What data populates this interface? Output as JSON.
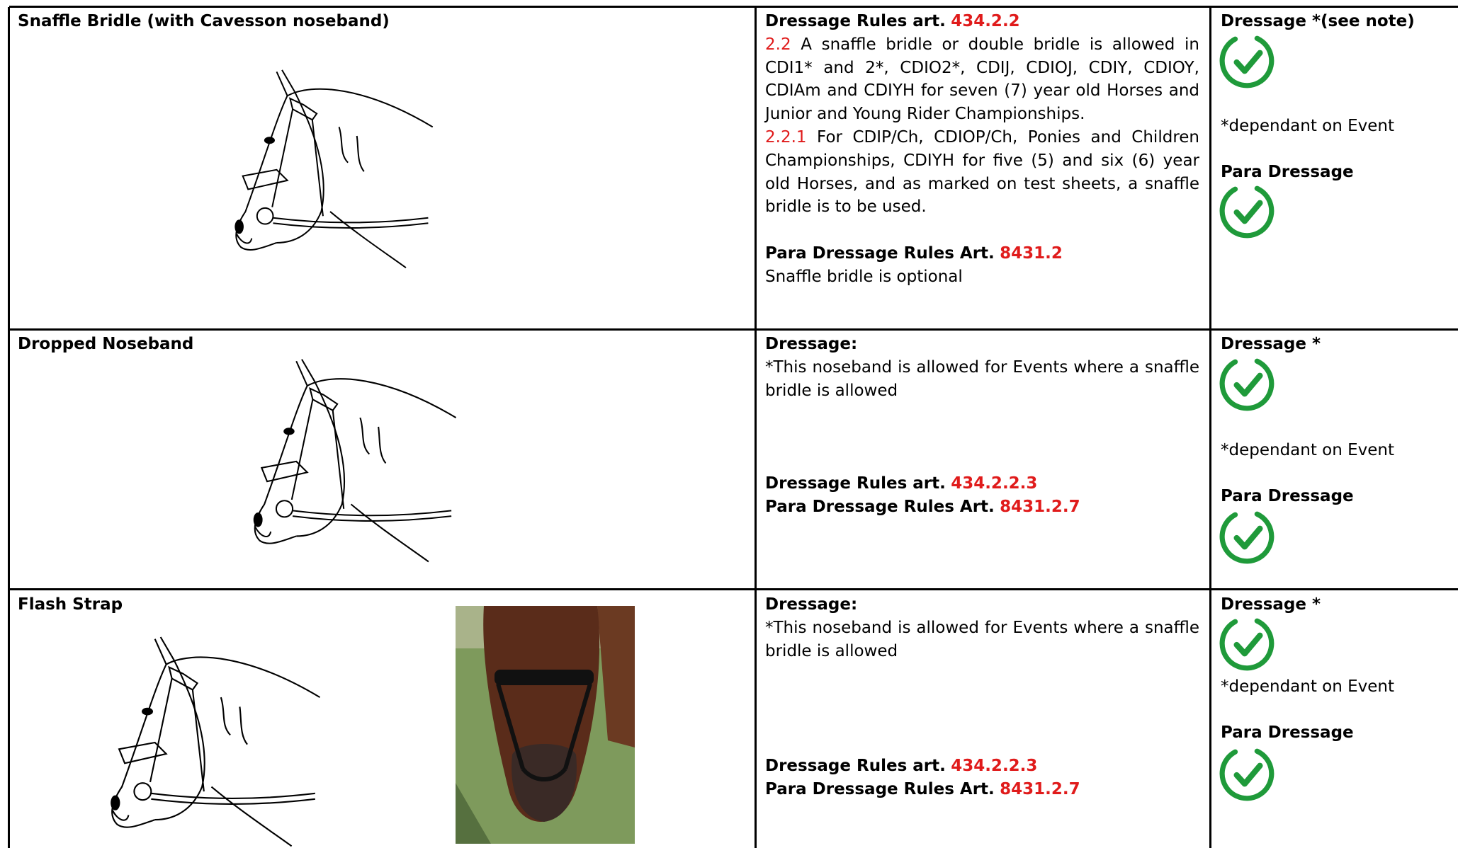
{
  "table": {
    "rows": [
      {
        "item": "Snaffle Bridle (with Cavesson noseband)",
        "rules": [
          {
            "heading": "Dressage Rules art.",
            "article": "434.2.2"
          },
          {
            "number": "2.2",
            "text": "A snaffle bridle or double bridle is allowed in CDI1* and 2*, CDIO2*, CDIJ, CDIOJ, CDIY, CDIOY, CDIAm and CDIYH for seven (7) year old Horses and Junior and Young Rider Championships."
          },
          {
            "number": "2.2.1",
            "text": "For CDIP/Ch, CDIOP/Ch, Ponies and Children Championships, CDIYH for five (5) and six (6) year old Horses, and as marked on test sheets, a snaffle bridle is to be used."
          },
          {
            "heading": "Para Dressage Rules Art.",
            "article": "8431.2"
          },
          {
            "text": "Snaffle bridle is optional"
          }
        ],
        "status": {
          "dressage": "Dressage *(see note)",
          "note": "*dependant on Event",
          "para": "Para Dressage"
        }
      },
      {
        "item": "Dropped Noseband",
        "rules": [
          {
            "heading": "Dressage:"
          },
          {
            "text": "*This noseband is allowed for Events where a snaffle bridle is allowed"
          },
          {
            "heading": "Dressage Rules art.",
            "article": "434.2.2.3"
          },
          {
            "heading": "Para Dressage Rules Art.",
            "article": "8431.2.7"
          }
        ],
        "status": {
          "dressage": "Dressage *",
          "note": "*dependant on Event",
          "para": "Para Dressage"
        }
      },
      {
        "item": "Flash Strap",
        "rules": [
          {
            "heading": "Dressage:"
          },
          {
            "text": "*This noseband is allowed for Events where a snaffle bridle is allowed"
          },
          {
            "heading": "Dressage Rules art.",
            "article": "434.2.2.3"
          },
          {
            "heading": "Para Dressage Rules Art.",
            "article": "8431.2.7"
          }
        ],
        "status": {
          "dressage": "Dressage *",
          "note": "*dependant on Event",
          "para": "Para Dressage"
        }
      }
    ]
  }
}
